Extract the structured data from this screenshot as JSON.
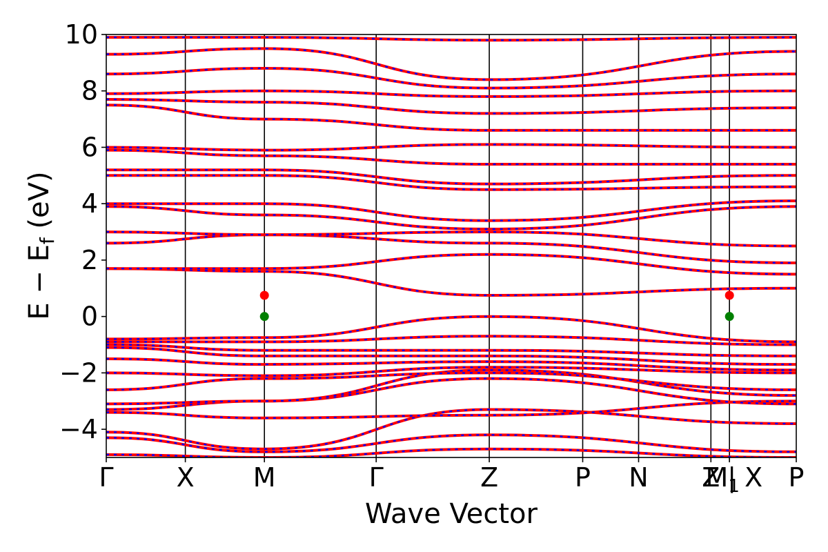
{
  "chart_data": {
    "type": "line",
    "title": "",
    "xlabel": "Wave Vector",
    "ylabel": "E − E",
    "ylabel_subscript": "f",
    "ylabel_unit": "(eV)",
    "ylim": [
      -5,
      10
    ],
    "yticks": [
      -4,
      -2,
      0,
      2,
      4,
      6,
      8,
      10
    ],
    "ytick_labels": [
      "−4",
      "−2",
      "0",
      "2",
      "4",
      "6",
      "8",
      "10"
    ],
    "kpath_length": 1.0,
    "kpoints": [
      {
        "label": "Γ",
        "k": 0.0
      },
      {
        "label": "X",
        "k": 0.1146
      },
      {
        "label": "M",
        "k": 0.2292
      },
      {
        "label": "Γ",
        "k": 0.3912
      },
      {
        "label": "Z",
        "k": 0.5551
      },
      {
        "label": "P",
        "k": 0.6905
      },
      {
        "label": "N",
        "k": 0.7715
      },
      {
        "label": "Z",
        "k": 0.8763
      },
      {
        "label": "M",
        "k": 0.9032,
        "subscript": "1"
      },
      {
        "label": "| X",
        "k": 0.9032
      },
      {
        "label": "P",
        "k": 1.0
      }
    ],
    "band_line_colors": {
      "solid": "#ff0000",
      "dashed": "#0000ff"
    },
    "band_edges": [
      {
        "name": "CBM",
        "k": 0.2292,
        "energy": 0.75,
        "color": "#ff0000"
      },
      {
        "name": "VBM",
        "k": 0.2292,
        "energy": 0.0,
        "color": "#008000"
      },
      {
        "name": "CBM",
        "k": 0.9032,
        "energy": 0.75,
        "color": "#ff0000"
      },
      {
        "name": "VBM",
        "k": 0.9032,
        "energy": 0.0,
        "color": "#008000"
      }
    ],
    "bands": [
      {
        "energies": [
          -4.9,
          -5.0,
          -4.7,
          -5.0
        ]
      },
      {
        "energies": [
          -4.3,
          -4.8,
          -4.2,
          -4.8
        ]
      },
      {
        "energies": [
          -4.1,
          -4.7,
          -3.3,
          -3.8
        ]
      },
      {
        "energies": [
          -3.4,
          -3.6,
          -3.5,
          -3.0
        ]
      },
      {
        "energies": [
          -3.3,
          -3.0,
          -2.2,
          -3.1
        ]
      },
      {
        "energies": [
          -3.1,
          -3.0,
          -1.9,
          -2.8
        ]
      },
      {
        "energies": [
          -2.6,
          -2.2,
          -2.0,
          -2.6
        ]
      },
      {
        "energies": [
          -2.0,
          -2.1,
          -1.8,
          -2.0
        ]
      },
      {
        "energies": [
          -1.5,
          -1.7,
          -1.6,
          -1.9
        ]
      },
      {
        "energies": [
          -1.1,
          -1.4,
          -1.4,
          -1.7
        ]
      },
      {
        "energies": [
          -1.0,
          -1.2,
          -1.2,
          -1.4
        ]
      },
      {
        "energies": [
          -0.9,
          -0.9,
          -0.7,
          -1.0
        ]
      },
      {
        "energies": [
          -0.8,
          -0.75,
          0.0,
          -0.9
        ]
      },
      {
        "energies": [
          1.7,
          1.6,
          0.75,
          1.0
        ]
      },
      {
        "energies": [
          1.7,
          1.7,
          2.2,
          1.5
        ]
      },
      {
        "energies": [
          2.6,
          2.9,
          2.6,
          1.9
        ]
      },
      {
        "energies": [
          3.0,
          2.9,
          3.0,
          2.5
        ]
      },
      {
        "energies": [
          3.9,
          3.6,
          3.1,
          3.9
        ]
      },
      {
        "energies": [
          4.0,
          4.0,
          3.4,
          4.1
        ]
      },
      {
        "energies": [
          5.0,
          5.0,
          4.5,
          4.6
        ]
      },
      {
        "energies": [
          5.2,
          5.2,
          4.7,
          5.0
        ]
      },
      {
        "energies": [
          5.9,
          5.7,
          5.4,
          5.4
        ]
      },
      {
        "energies": [
          6.0,
          5.9,
          6.1,
          6.0
        ]
      },
      {
        "energies": [
          7.5,
          7.0,
          6.6,
          6.6
        ]
      },
      {
        "energies": [
          7.7,
          7.6,
          7.2,
          7.4
        ]
      },
      {
        "energies": [
          7.9,
          8.0,
          7.8,
          8.0
        ]
      },
      {
        "energies": [
          8.6,
          8.8,
          8.1,
          8.6
        ]
      },
      {
        "energies": [
          9.3,
          9.5,
          8.4,
          9.4
        ]
      },
      {
        "energies": [
          9.9,
          9.9,
          9.8,
          9.9
        ]
      }
    ]
  }
}
